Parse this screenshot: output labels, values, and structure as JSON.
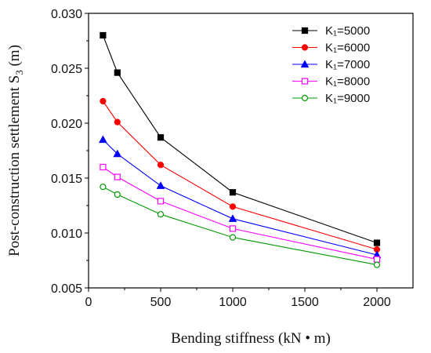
{
  "chart_data": {
    "type": "line",
    "title": "",
    "xlabel": "Bending stiffness (kN • m)",
    "ylabel_prefix": "Post-construction settlement S",
    "ylabel_sub": "3",
    "ylabel_suffix": " (m)",
    "xlim": [
      0,
      2250
    ],
    "ylim": [
      0.005,
      0.03
    ],
    "x_ticks": [
      0,
      500,
      1000,
      1500,
      2000
    ],
    "x_tick_labels": [
      "0",
      "500",
      "1000",
      "1500",
      "2000"
    ],
    "y_ticks": [
      0.005,
      0.01,
      0.015,
      0.02,
      0.025,
      0.03
    ],
    "y_tick_labels": [
      "0.005",
      "0.010",
      "0.015",
      "0.020",
      "0.025",
      "0.030"
    ],
    "grid": false,
    "legend_position": "top-right",
    "x": [
      100,
      200,
      500,
      1000,
      2000
    ],
    "series": [
      {
        "name": "K₁=5000",
        "values": [
          0.028,
          0.0246,
          0.0187,
          0.0137,
          0.0091
        ],
        "color": "#000000",
        "marker": "square-filled"
      },
      {
        "name": "K₁=6000",
        "values": [
          0.022,
          0.0201,
          0.0162,
          0.0124,
          0.0085
        ],
        "color": "#ff0000",
        "marker": "circle-filled"
      },
      {
        "name": "K₁=7000",
        "values": [
          0.0185,
          0.0172,
          0.0143,
          0.0113,
          0.008
        ],
        "color": "#0000ff",
        "marker": "triangle-filled"
      },
      {
        "name": "K₁=8000",
        "values": [
          0.016,
          0.0151,
          0.0129,
          0.0104,
          0.0076
        ],
        "color": "#ff00ff",
        "marker": "square-open"
      },
      {
        "name": "K₁=9000",
        "values": [
          0.0142,
          0.0135,
          0.0117,
          0.0096,
          0.0071
        ],
        "color": "#009900",
        "marker": "circle-open"
      }
    ]
  }
}
